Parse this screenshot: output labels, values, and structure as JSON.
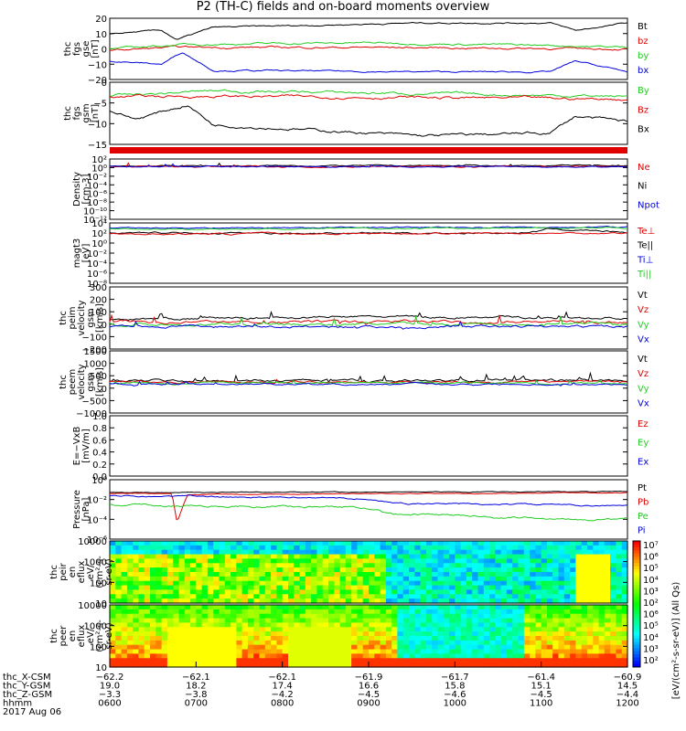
{
  "title": "P2 (TH-C) fields and on-board moments overview",
  "colors": {
    "black": "#000000",
    "red": "#e00000",
    "green": "#22cc22",
    "blue": "#0000dd"
  },
  "panels": [
    {
      "id": "fgs_gse",
      "ylabel": [
        "thc",
        "fgs",
        "gse",
        "[nT]"
      ],
      "scale": "linear",
      "ylim": [
        -20,
        20
      ],
      "ticks": [
        "20",
        "10",
        "0",
        "−10",
        "−20"
      ],
      "legend": [
        {
          "text": "Bt",
          "color": "black"
        },
        {
          "text": "bz",
          "color": "red"
        },
        {
          "text": "by",
          "color": "green"
        },
        {
          "text": "bx",
          "color": "blue"
        }
      ]
    },
    {
      "id": "fgs_gsm",
      "ylabel": [
        "thc",
        "fgs",
        "gsm",
        "[nT]"
      ],
      "scale": "linear",
      "ylim": [
        -17,
        5
      ],
      "ticks": [
        "0",
        "−5",
        "−10",
        "−15"
      ],
      "legend": [
        {
          "text": "By",
          "color": "green"
        },
        {
          "text": "Bz",
          "color": "red"
        },
        {
          "text": "Bx",
          "color": "black"
        }
      ]
    },
    {
      "id": "density",
      "ylabel": [
        "Density",
        "[cm-3]"
      ],
      "scale": "log",
      "ticks": [
        "10²",
        "10⁰",
        "10⁻²",
        "10⁻⁴",
        "10⁻⁶",
        "10⁻⁸",
        "10⁻¹⁰",
        "10⁻¹²"
      ],
      "legend": [
        {
          "text": "Ne",
          "color": "red"
        },
        {
          "text": "Ni",
          "color": "black"
        },
        {
          "text": "Npot",
          "color": "blue"
        }
      ]
    },
    {
      "id": "temperature",
      "ylabel": [
        "magt3",
        "[eV]"
      ],
      "scale": "log",
      "ticks": [
        "10⁴",
        "10²",
        "10⁰",
        "10⁻²",
        "10⁻⁴",
        "10⁻⁶",
        "10⁻⁸"
      ],
      "legend": [
        {
          "text": "Te⊥",
          "color": "red"
        },
        {
          "text": "Te||",
          "color": "black"
        },
        {
          "text": "Ti⊥",
          "color": "blue"
        },
        {
          "text": "Ti||",
          "color": "green"
        }
      ]
    },
    {
      "id": "ion_velocity",
      "ylabel": [
        "thc",
        "peim",
        "velocity",
        "gsm",
        "[km/s]"
      ],
      "scale": "linear",
      "ylim": [
        -200,
        300
      ],
      "ticks": [
        "300",
        "200",
        "100",
        "0",
        "−100",
        "−200"
      ],
      "legend": [
        {
          "text": "Vt",
          "color": "black"
        },
        {
          "text": "Vz",
          "color": "red"
        },
        {
          "text": "Vy",
          "color": "green"
        },
        {
          "text": "Vx",
          "color": "blue"
        }
      ]
    },
    {
      "id": "electron_velocity",
      "ylabel": [
        "thc",
        "peem",
        "velocity",
        "gsm",
        "[km/s]"
      ],
      "scale": "linear",
      "ylim": [
        -1500,
        1500
      ],
      "ticks": [
        "1500",
        "1000",
        "500",
        "0",
        "−500",
        "−1000"
      ],
      "legend": [
        {
          "text": "Vt",
          "color": "black"
        },
        {
          "text": "Vz",
          "color": "red"
        },
        {
          "text": "Vy",
          "color": "green"
        },
        {
          "text": "Vx",
          "color": "blue"
        }
      ]
    },
    {
      "id": "efield",
      "ylabel": [
        "E=−VxB",
        "[mV/m]"
      ],
      "scale": "linear",
      "ylim": [
        0,
        1
      ],
      "ticks": [
        "1.0",
        "0.8",
        "0.6",
        "0.4",
        "0.2",
        "0.0"
      ],
      "legend": [
        {
          "text": "Ez",
          "color": "red"
        },
        {
          "text": "Ey",
          "color": "green"
        },
        {
          "text": "Ex",
          "color": "blue"
        }
      ]
    },
    {
      "id": "pressure",
      "ylabel": [
        "Pressure",
        "[nPa]"
      ],
      "scale": "log",
      "ticks": [
        "10⁰",
        "10⁻²",
        "10⁻⁴",
        "10⁻⁶"
      ],
      "legend": [
        {
          "text": "Pt",
          "color": "black"
        },
        {
          "text": "Pb",
          "color": "red"
        },
        {
          "text": "Pe",
          "color": "green"
        },
        {
          "text": "Pi",
          "color": "blue"
        }
      ]
    },
    {
      "id": "ion_spec",
      "ylabel": [
        "thc",
        "peir",
        "en",
        "eflux",
        "eV/",
        "(cm²-s-",
        "sr-eV)"
      ],
      "scale": "log",
      "ticks": [
        "10000",
        "1000",
        "100",
        "10"
      ]
    },
    {
      "id": "electron_spec",
      "ylabel": [
        "thc",
        "peer",
        "en",
        "eflux",
        "eV/",
        "(cm²-s-",
        "sr-eV)"
      ],
      "scale": "log",
      "ticks": [
        "10000",
        "1000",
        "100",
        "10"
      ]
    }
  ],
  "colorbar": {
    "label": "[eV/(cm²-s-sr-eV)] (All Qs)",
    "ticks": [
      "10⁷",
      "10⁶",
      "10⁵",
      "10⁴",
      "10³",
      "10²",
      "10⁶",
      "10⁵",
      "10⁴",
      "10³",
      "10²"
    ]
  },
  "xaxis": {
    "rows": [
      {
        "label": "thc_X-CSM",
        "values": [
          "−62.2",
          "−62.1",
          "−62.1",
          "−61.9",
          "−61.7",
          "−61.4",
          "−60.9"
        ]
      },
      {
        "label": "thc_Y-GSM",
        "values": [
          "19.0",
          "18.2",
          "17.4",
          "16.6",
          "15.8",
          "15.1",
          "14.5"
        ]
      },
      {
        "label": "thc_Z-GSM",
        "values": [
          "−3.3",
          "−3.8",
          "−4.2",
          "−4.5",
          "−4.6",
          "−4.5",
          "−4.4"
        ]
      },
      {
        "label": "hhmm",
        "values": [
          "0600",
          "0700",
          "0800",
          "0900",
          "1000",
          "1100",
          "1200"
        ]
      }
    ],
    "date": "2017 Aug 06"
  },
  "chart_data": {
    "type": "line",
    "title": "P2 (TH-C) fields and on-board moments overview",
    "x": [
      "0600",
      "0700",
      "0800",
      "0900",
      "1000",
      "1100",
      "1200"
    ],
    "series": [
      {
        "name": "Bt",
        "values": [
          10,
          15,
          15,
          17,
          17,
          16,
          17
        ]
      },
      {
        "name": "bz",
        "values": [
          0,
          0,
          1,
          0,
          0,
          0,
          0
        ]
      },
      {
        "name": "by",
        "values": [
          0,
          5,
          4,
          4,
          3,
          2,
          1
        ]
      },
      {
        "name": "bx",
        "values": [
          -10,
          -14,
          -14,
          -15,
          -15,
          -13,
          -15
        ]
      },
      {
        "name": "Vt",
        "values": [
          60,
          60,
          70,
          60,
          50,
          60,
          80
        ]
      },
      {
        "name": "Pt",
        "values": [
          0.05,
          0.05,
          0.06,
          0.06,
          0.06,
          0.05,
          0.06
        ]
      }
    ]
  }
}
